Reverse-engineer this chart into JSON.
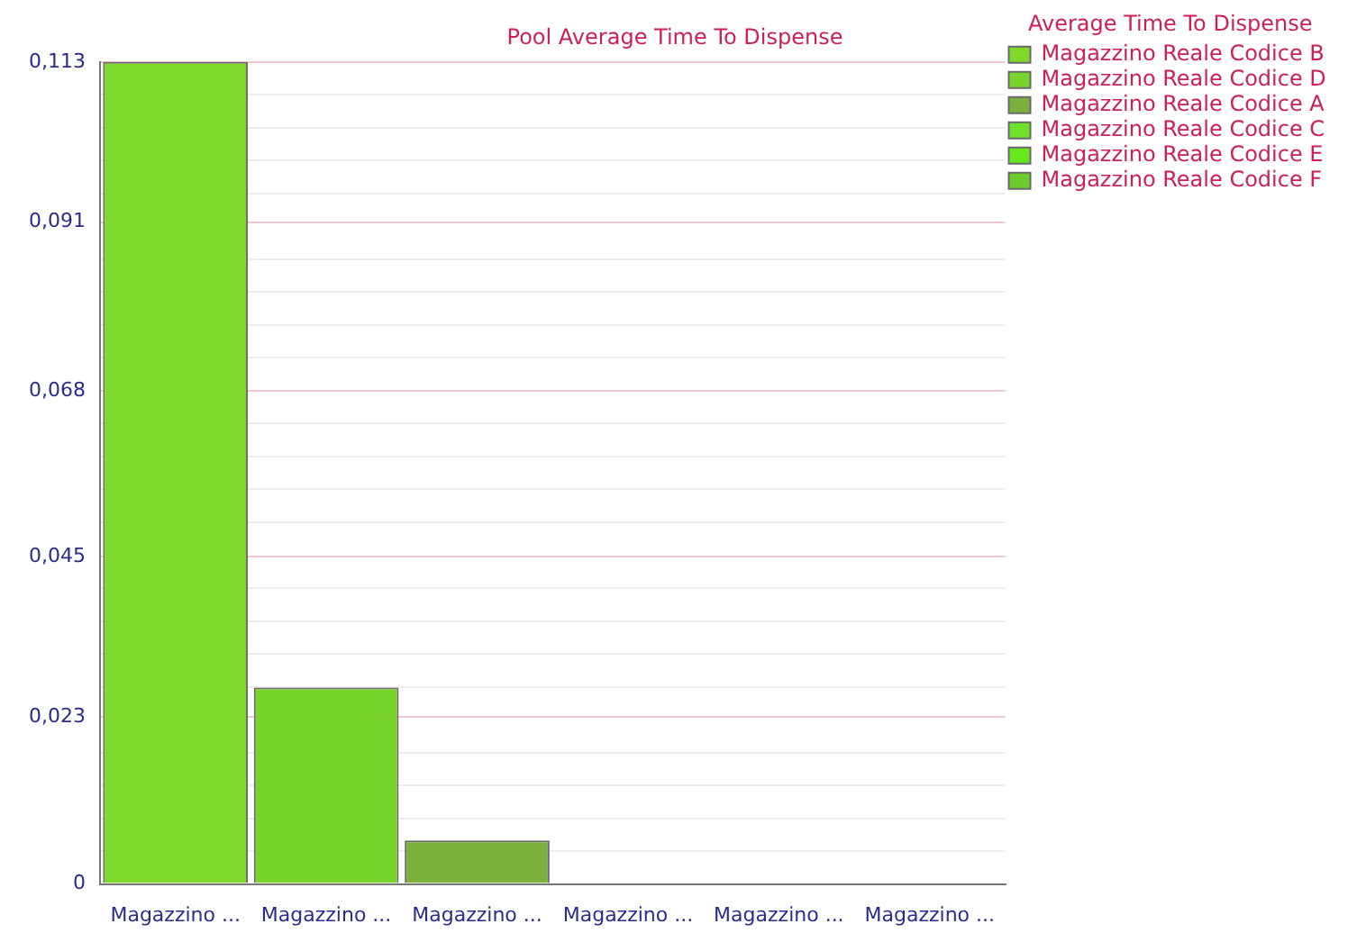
{
  "chart_data": {
    "type": "bar",
    "title": "Pool Average Time To Dispense",
    "legend_title": "Average Time To Dispense",
    "categories": [
      "Magazzino ...",
      "Magazzino ...",
      "Magazzino ...",
      "Magazzino ...",
      "Magazzino ...",
      "Magazzino ..."
    ],
    "series": [
      {
        "name": "Magazzino Reale Codice B",
        "color": "#7ed92c",
        "values": [
          0.113,
          null,
          null,
          null,
          null,
          null
        ]
      },
      {
        "name": "Magazzino Reale Codice D",
        "color": "#78d42a",
        "values": [
          null,
          0.027,
          null,
          null,
          null,
          null
        ]
      },
      {
        "name": "Magazzino Reale Codice A",
        "color": "#7bb03a",
        "values": [
          null,
          null,
          0.006,
          null,
          null,
          null
        ]
      },
      {
        "name": "Magazzino Reale Codice C",
        "color": "#6ee22a",
        "values": [
          null,
          null,
          null,
          0,
          null,
          null
        ]
      },
      {
        "name": "Magazzino Reale Codice E",
        "color": "#66e81e",
        "values": [
          null,
          null,
          null,
          null,
          0,
          null
        ]
      },
      {
        "name": "Magazzino Reale Codice F",
        "color": "#6ccc2a",
        "values": [
          null,
          null,
          null,
          null,
          null,
          0
        ]
      }
    ],
    "ylim": [
      0,
      0.113
    ],
    "yticks": [
      {
        "value": 0,
        "label": "0"
      },
      {
        "value": 0.00452,
        "label": null
      },
      {
        "value": 0.00904,
        "label": null
      },
      {
        "value": 0.01356,
        "label": null
      },
      {
        "value": 0.01808,
        "label": null
      },
      {
        "value": 0.023,
        "label": "0,023"
      },
      {
        "value": 0.02712,
        "label": null
      },
      {
        "value": 0.03164,
        "label": null
      },
      {
        "value": 0.03616,
        "label": null
      },
      {
        "value": 0.04068,
        "label": null
      },
      {
        "value": 0.045,
        "label": "0,045"
      },
      {
        "value": 0.04972,
        "label": null
      },
      {
        "value": 0.05424,
        "label": null
      },
      {
        "value": 0.05876,
        "label": null
      },
      {
        "value": 0.06328,
        "label": null
      },
      {
        "value": 0.0678,
        "label": "0,068"
      },
      {
        "value": 0.07232,
        "label": null
      },
      {
        "value": 0.07684,
        "label": null
      },
      {
        "value": 0.08136,
        "label": null
      },
      {
        "value": 0.08588,
        "label": null
      },
      {
        "value": 0.091,
        "label": "0,091"
      },
      {
        "value": 0.09492,
        "label": null
      },
      {
        "value": 0.09944,
        "label": null
      },
      {
        "value": 0.10396,
        "label": null
      },
      {
        "value": 0.10848,
        "label": null
      },
      {
        "value": 0.113,
        "label": "0,113"
      }
    ],
    "grid": "y",
    "legend": "top right"
  }
}
